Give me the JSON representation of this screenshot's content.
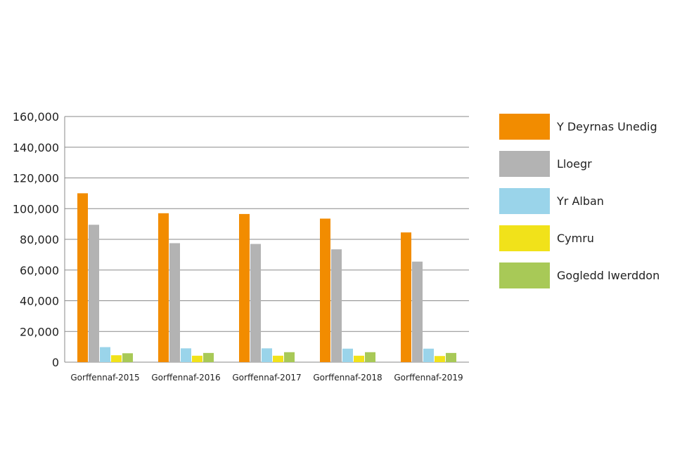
{
  "chart_data": {
    "type": "bar",
    "title": "",
    "xlabel": "",
    "ylabel": "",
    "categories": [
      "Gorffennaf-2015",
      "Gorffennaf-2016",
      "Gorffennaf-2017",
      "Gorffennaf-2018",
      "Gorffennaf-2019"
    ],
    "series": [
      {
        "name": "Y Deyrnas Unedig",
        "color": "#f28c00",
        "values": [
          110000,
          97000,
          96500,
          93500,
          84500
        ]
      },
      {
        "name": "Lloegr",
        "color": "#b3b3b3",
        "values": [
          89500,
          77500,
          77000,
          73500,
          65500
        ]
      },
      {
        "name": "Yr Alban",
        "color": "#9ad4ea",
        "values": [
          9800,
          9000,
          9000,
          8800,
          8800
        ]
      },
      {
        "name": "Cymru",
        "color": "#f1e21a",
        "values": [
          4500,
          4200,
          4200,
          4200,
          4000
        ]
      },
      {
        "name": "Gogledd Iwerddon",
        "color": "#a8c957",
        "values": [
          5800,
          6000,
          6500,
          6500,
          6000
        ]
      }
    ],
    "ylim": [
      0,
      160000
    ],
    "yticks": [
      "0",
      "20,000",
      "40,000",
      "60,000",
      "80,000",
      "100,000",
      "120,000",
      "140,000",
      "160,000"
    ],
    "grid": true,
    "legend_position": "right"
  }
}
